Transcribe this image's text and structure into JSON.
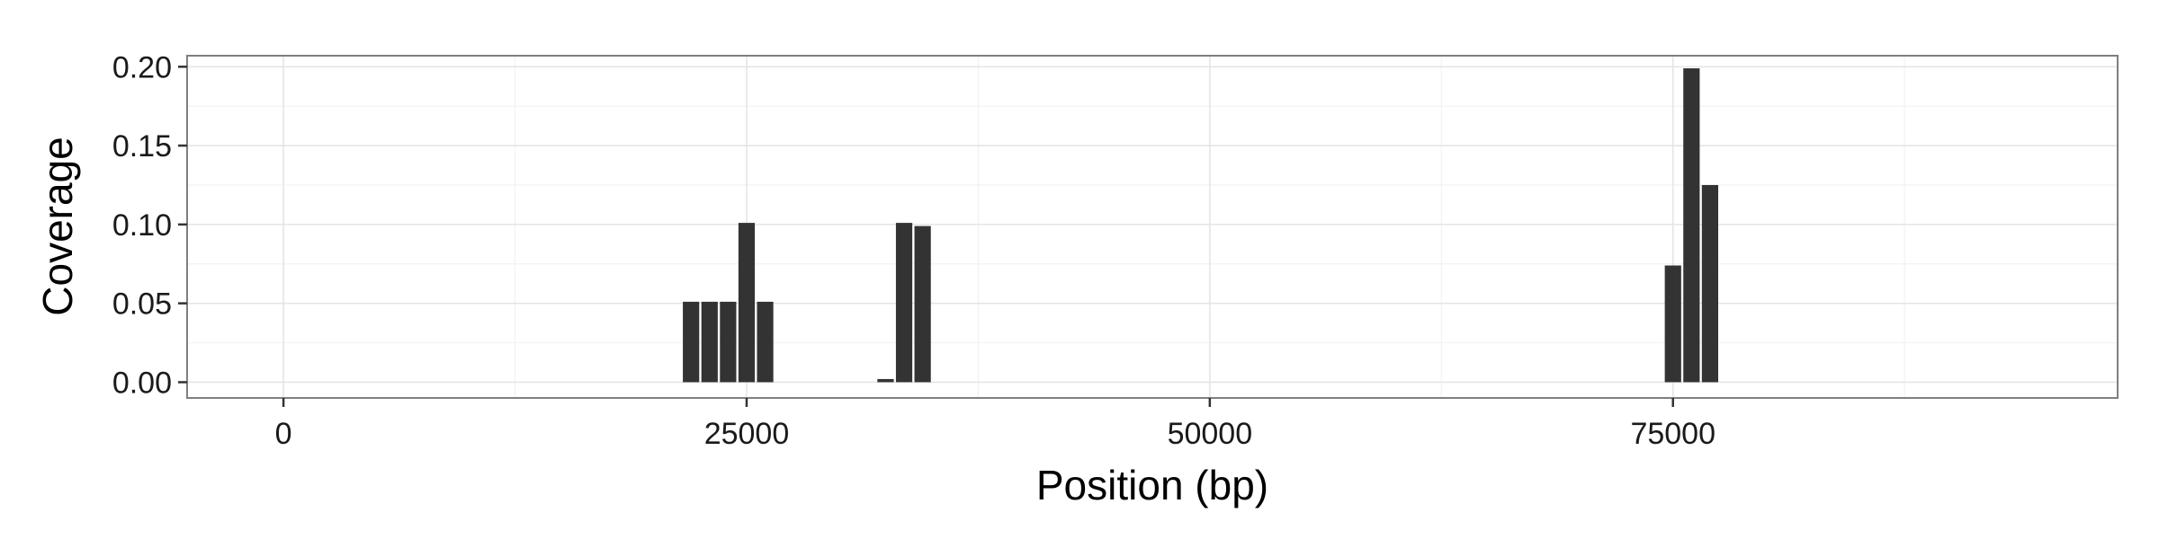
{
  "chart_data": {
    "type": "bar",
    "xlabel": "Position (bp)",
    "ylabel": "Coverage",
    "xlim": [
      -5200,
      99000
    ],
    "ylim": [
      -0.01,
      0.207
    ],
    "x_ticks": [
      0,
      25000,
      50000,
      75000
    ],
    "x_tick_labels": [
      "0",
      "25000",
      "50000",
      "75000"
    ],
    "y_ticks": [
      0,
      0.05,
      0.1,
      0.15,
      0.2
    ],
    "y_tick_labels": [
      "0.00",
      "0.05",
      "0.10",
      "0.15",
      "0.20"
    ],
    "bin_width": 1000,
    "grid": true,
    "bar_color": "#333333",
    "series": [
      {
        "x": [
          22000,
          23000,
          24000,
          25000,
          26000,
          32500,
          33500,
          34500,
          75000,
          76000,
          77000
        ],
        "values": [
          0.051,
          0.051,
          0.051,
          0.101,
          0.051,
          0.002,
          0.101,
          0.099,
          0.074,
          0.199,
          0.125
        ]
      }
    ]
  }
}
